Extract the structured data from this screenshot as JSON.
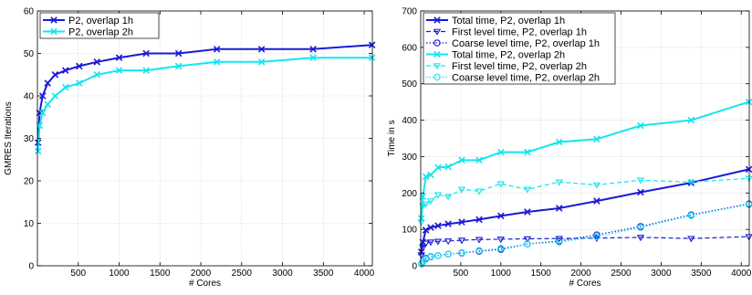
{
  "chart_data": [
    {
      "type": "line",
      "xlabel": "# Cores",
      "ylabel": "GMRES Iterations",
      "xlim": [
        0,
        4100
      ],
      "ylim": [
        0,
        60
      ],
      "xticks": [
        500,
        1000,
        1500,
        2000,
        2500,
        3000,
        3500,
        4000
      ],
      "yticks": [
        0,
        10,
        20,
        30,
        40,
        50,
        60
      ],
      "grid": true,
      "legend_position": "top-left",
      "series": [
        {
          "name": "P2, overlap 1h",
          "color": "#1a1ad6",
          "marker": "x",
          "line": "solid",
          "x": [
            8,
            27,
            64,
            125,
            216,
            343,
            512,
            729,
            1000,
            1331,
            1728,
            2197,
            2744,
            3375,
            4096
          ],
          "y": [
            29,
            36,
            40,
            43,
            45,
            46,
            47,
            48,
            49,
            50,
            50,
            51,
            51,
            51,
            52
          ]
        },
        {
          "name": "P2, overlap 2h",
          "color": "#12e6f0",
          "marker": "x",
          "line": "solid",
          "x": [
            8,
            27,
            64,
            125,
            216,
            343,
            512,
            729,
            1000,
            1331,
            1728,
            2197,
            2744,
            3375,
            4096
          ],
          "y": [
            27,
            33,
            36,
            38,
            40,
            42,
            43,
            45,
            46,
            46,
            47,
            48,
            48,
            49,
            49
          ]
        }
      ]
    },
    {
      "type": "line",
      "xlabel": "# Cores",
      "ylabel": "Time in s",
      "xlim": [
        0,
        4100
      ],
      "ylim": [
        0,
        700
      ],
      "xticks": [
        500,
        1000,
        1500,
        2000,
        2500,
        3000,
        3500,
        4000
      ],
      "yticks": [
        0,
        100,
        200,
        300,
        400,
        500,
        600,
        700
      ],
      "grid": true,
      "legend_position": "top-left",
      "series": [
        {
          "name": "Total time, P2, overlap 1h",
          "color": "#1a1ad6",
          "marker": "x",
          "line": "solid",
          "x": [
            8,
            27,
            64,
            125,
            216,
            343,
            512,
            729,
            1000,
            1331,
            1728,
            2197,
            2744,
            3375,
            4096
          ],
          "y": [
            38,
            65,
            98,
            105,
            110,
            115,
            120,
            127,
            137,
            148,
            158,
            178,
            202,
            228,
            265
          ]
        },
        {
          "name": "First level time, P2, overlap 1h",
          "color": "#1a1ad6",
          "marker": "triangle-down",
          "line": "dashed",
          "x": [
            8,
            27,
            64,
            125,
            216,
            343,
            512,
            729,
            1000,
            1331,
            1728,
            2197,
            2744,
            3375,
            4096
          ],
          "y": [
            30,
            50,
            62,
            65,
            67,
            68,
            70,
            72,
            73,
            74,
            75,
            76,
            78,
            75,
            80
          ]
        },
        {
          "name": "Coarse level time, P2, overlap 1h",
          "color": "#1a1ad6",
          "marker": "circle",
          "line": "dotted",
          "x": [
            8,
            27,
            64,
            125,
            216,
            343,
            512,
            729,
            1000,
            1331,
            1728,
            2197,
            2744,
            3375,
            4096
          ],
          "y": [
            5,
            12,
            20,
            25,
            28,
            32,
            35,
            40,
            45,
            60,
            68,
            85,
            108,
            140,
            170
          ]
        },
        {
          "name": "Total time, P2, overlap 2h",
          "color": "#12e6f0",
          "marker": "x",
          "line": "solid",
          "x": [
            8,
            27,
            64,
            125,
            216,
            343,
            512,
            729,
            1000,
            1331,
            1728,
            2197,
            2744,
            3375,
            4096
          ],
          "y": [
            130,
            190,
            245,
            250,
            270,
            272,
            290,
            290,
            312,
            312,
            340,
            348,
            385,
            400,
            450
          ]
        },
        {
          "name": "First level time, P2, overlap 2h",
          "color": "#12e6f0",
          "marker": "triangle-down",
          "line": "dashed",
          "x": [
            8,
            27,
            64,
            125,
            216,
            343,
            512,
            729,
            1000,
            1331,
            1728,
            2197,
            2744,
            3375,
            4096
          ],
          "y": [
            120,
            165,
            170,
            178,
            195,
            190,
            210,
            205,
            225,
            210,
            230,
            222,
            235,
            230,
            240
          ]
        },
        {
          "name": "Coarse level time, P2, overlap 2h",
          "color": "#12e6f0",
          "marker": "circle",
          "line": "dotted",
          "x": [
            8,
            27,
            64,
            125,
            216,
            343,
            512,
            729,
            1000,
            1331,
            1728,
            2197,
            2744,
            3375,
            4096
          ],
          "y": [
            5,
            12,
            18,
            24,
            28,
            32,
            36,
            42,
            48,
            60,
            65,
            80,
            105,
            138,
            168
          ]
        }
      ]
    }
  ]
}
